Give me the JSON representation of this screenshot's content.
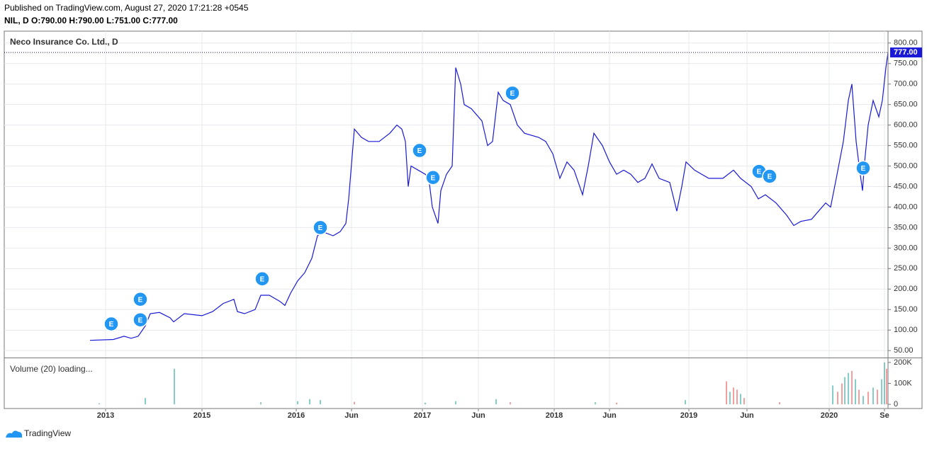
{
  "header": {
    "published": "Published on TradingView.com, August 27, 2020 17:21:28 +0545",
    "ohlc": "NIL, D  O:790.00 H:790.00 L:751.00 C:777.00"
  },
  "footer": {
    "brand": "TradingView"
  },
  "chart_data": [
    {
      "type": "line",
      "title": "Neco Insurance Co. Ltd., D",
      "color": "#1a1ad6",
      "grid": true,
      "xlim": [
        0,
        1245
      ],
      "xticks": [
        {
          "value": 141,
          "label": "2013"
        },
        {
          "value": 277,
          "label": "2015"
        },
        {
          "value": 410,
          "label": "2016"
        },
        {
          "value": 488,
          "label": "Jun"
        },
        {
          "value": 588,
          "label": "2017"
        },
        {
          "value": 667,
          "label": "Jun"
        },
        {
          "value": 774,
          "label": "2018"
        },
        {
          "value": 852,
          "label": "Jun"
        },
        {
          "value": 964,
          "label": "2019"
        },
        {
          "value": 1046,
          "label": "Jun"
        },
        {
          "value": 1162,
          "label": "2020"
        },
        {
          "value": 1240,
          "label": "Se"
        }
      ],
      "ylim": [
        33,
        829
      ],
      "yticks": [
        {
          "value": 50,
          "label": "50.00"
        },
        {
          "value": 100,
          "label": "100.00"
        },
        {
          "value": 150,
          "label": "150.00"
        },
        {
          "value": 200,
          "label": "200.00"
        },
        {
          "value": 250,
          "label": "250.00"
        },
        {
          "value": 300,
          "label": "300.00"
        },
        {
          "value": 350,
          "label": "350.00"
        },
        {
          "value": 400,
          "label": "400.00"
        },
        {
          "value": 450,
          "label": "450.00"
        },
        {
          "value": 500,
          "label": "500.00"
        },
        {
          "value": 550,
          "label": "550.00"
        },
        {
          "value": 600,
          "label": "600.00"
        },
        {
          "value": 650,
          "label": "650.00"
        },
        {
          "value": 700,
          "label": "700.00"
        },
        {
          "value": 750,
          "label": "750.00"
        },
        {
          "value": 800,
          "label": "800.00"
        }
      ],
      "last_price": {
        "value": 777,
        "label": "777.00"
      },
      "x": [
        119,
        152,
        167,
        177,
        187,
        197,
        204,
        217,
        232,
        237,
        252,
        277,
        292,
        307,
        322,
        327,
        337,
        352,
        360,
        372,
        387,
        394,
        402,
        412,
        422,
        432,
        440,
        447,
        462,
        472,
        480,
        484,
        492,
        502,
        512,
        527,
        542,
        552,
        559,
        564,
        568,
        572,
        582,
        592,
        597,
        602,
        610,
        614,
        622,
        630,
        635,
        642,
        647,
        657,
        672,
        680,
        687,
        695,
        702,
        712,
        722,
        732,
        752,
        762,
        772,
        782,
        792,
        802,
        814,
        822,
        830,
        842,
        852,
        862,
        872,
        882,
        892,
        902,
        912,
        922,
        937,
        947,
        954,
        960,
        972,
        992,
        1012,
        1027,
        1037,
        1052,
        1062,
        1072,
        1087,
        1102,
        1112,
        1122,
        1137,
        1147,
        1157,
        1164,
        1172,
        1182,
        1189,
        1194,
        1200,
        1205,
        1209,
        1212,
        1217,
        1224,
        1232,
        1237,
        1242,
        1245
      ],
      "values": [
        75,
        77,
        85,
        80,
        85,
        110,
        140,
        143,
        130,
        120,
        140,
        135,
        145,
        165,
        175,
        145,
        140,
        150,
        185,
        185,
        170,
        160,
        190,
        220,
        240,
        275,
        330,
        340,
        330,
        340,
        360,
        420,
        590,
        570,
        560,
        560,
        580,
        600,
        590,
        560,
        450,
        500,
        490,
        480,
        470,
        400,
        360,
        440,
        480,
        500,
        740,
        700,
        650,
        640,
        610,
        550,
        560,
        680,
        660,
        650,
        600,
        580,
        570,
        560,
        530,
        470,
        510,
        490,
        430,
        500,
        580,
        550,
        510,
        480,
        490,
        480,
        460,
        470,
        505,
        470,
        460,
        390,
        450,
        510,
        490,
        470,
        470,
        490,
        470,
        450,
        420,
        430,
        410,
        380,
        355,
        365,
        370,
        390,
        410,
        400,
        470,
        560,
        660,
        700,
        560,
        490,
        440,
        510,
        600,
        660,
        620,
        660,
        740,
        777
      ],
      "events": [
        {
          "x": 149,
          "y": 115,
          "label": "E"
        },
        {
          "x": 190,
          "y": 175,
          "label": "E"
        },
        {
          "x": 190,
          "y": 125,
          "label": "E"
        },
        {
          "x": 362,
          "y": 225,
          "label": "E"
        },
        {
          "x": 444,
          "y": 350,
          "label": "E"
        },
        {
          "x": 584,
          "y": 538,
          "label": "E"
        },
        {
          "x": 603,
          "y": 472,
          "label": "E"
        },
        {
          "x": 715,
          "y": 678,
          "label": "E"
        },
        {
          "x": 1063,
          "y": 487,
          "label": "E"
        },
        {
          "x": 1078,
          "y": 475,
          "label": "E"
        },
        {
          "x": 1210,
          "y": 495,
          "label": "E"
        }
      ]
    },
    {
      "type": "bar",
      "title": "Volume (20) loading...",
      "ylim": [
        -20000,
        220000
      ],
      "yticks": [
        {
          "value": 0,
          "label": "0"
        },
        {
          "value": 100000,
          "label": "100K"
        },
        {
          "value": 200000,
          "label": "200K"
        }
      ],
      "x": [
        132,
        197,
        238,
        360,
        412,
        429,
        444,
        492,
        592,
        635,
        692,
        712,
        832,
        862,
        959,
        1017,
        1022,
        1027,
        1032,
        1037,
        1042,
        1092,
        1167,
        1174,
        1180,
        1184,
        1189,
        1194,
        1199,
        1204,
        1210,
        1217,
        1224,
        1230,
        1236,
        1240,
        1243
      ],
      "values": [
        5000,
        30000,
        170000,
        10000,
        15000,
        25000,
        20000,
        12000,
        8000,
        15000,
        25000,
        10000,
        10000,
        8000,
        20000,
        110000,
        60000,
        80000,
        70000,
        50000,
        30000,
        10000,
        90000,
        60000,
        100000,
        130000,
        150000,
        160000,
        120000,
        70000,
        40000,
        60000,
        80000,
        70000,
        120000,
        200000,
        170000
      ],
      "colors": [
        "#26a69a",
        "#26a69a",
        "#26a69a",
        "#26a69a",
        "#26a69a",
        "#26a69a",
        "#26a69a",
        "#ef5350",
        "#26a69a",
        "#26a69a",
        "#26a69a",
        "#ef5350",
        "#26a69a",
        "#ef5350",
        "#26a69a",
        "#ef5350",
        "#26a69a",
        "#ef5350",
        "#ef5350",
        "#26a69a",
        "#ef5350",
        "#ef5350",
        "#26a69a",
        "#ef5350",
        "#ef5350",
        "#26a69a",
        "#26a69a",
        "#ef5350",
        "#26a69a",
        "#ef5350",
        "#26a69a",
        "#ef5350",
        "#26a69a",
        "#ef5350",
        "#26a69a",
        "#26a69a",
        "#ef5350"
      ]
    }
  ]
}
